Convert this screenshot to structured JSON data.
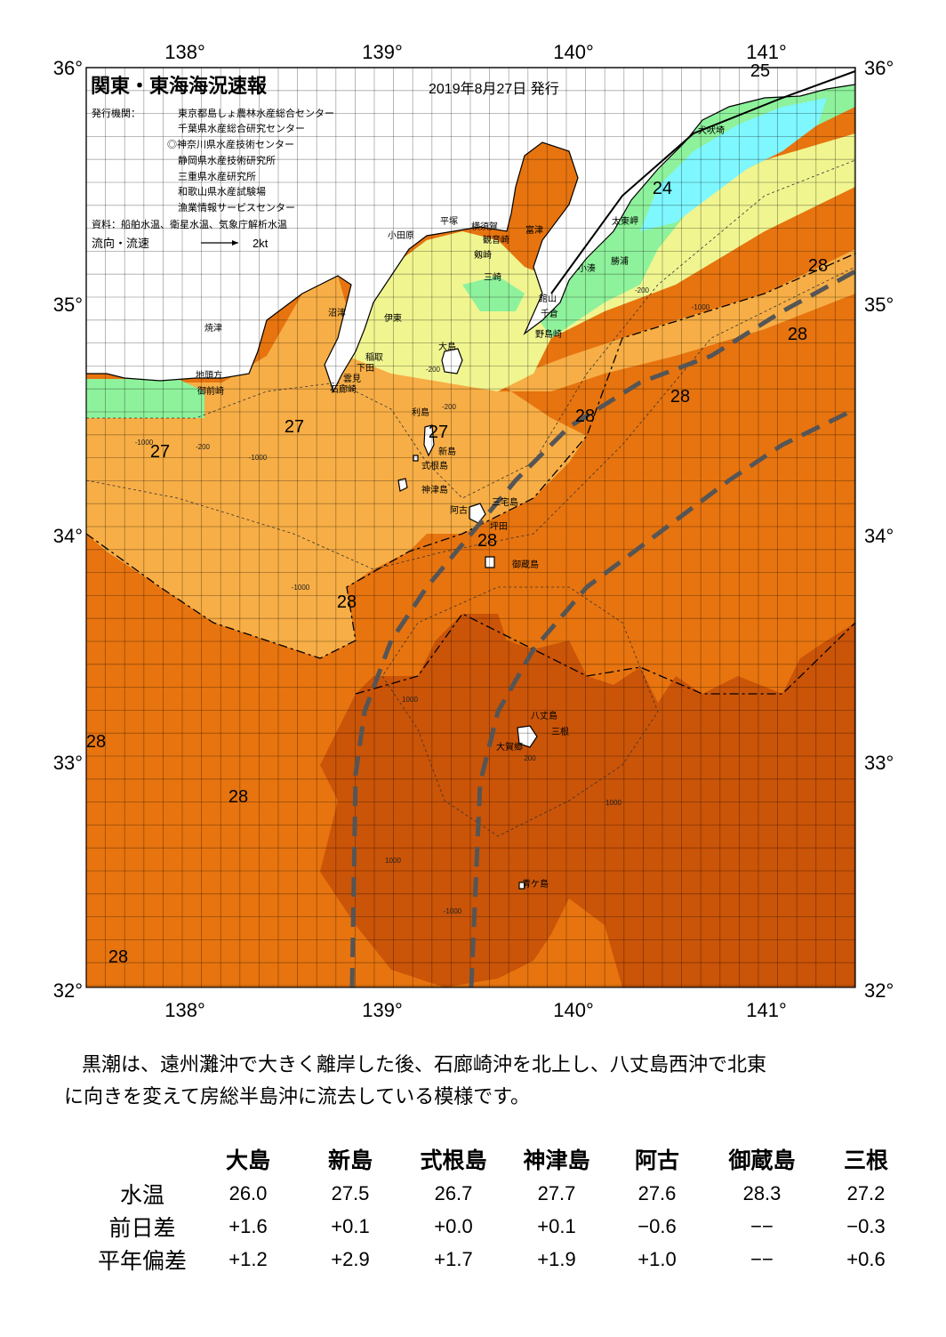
{
  "header": {
    "title": "関東・東海海況速報",
    "date": "2019年8月27日 発行",
    "agency_label": "発行機関：",
    "agencies": [
      "東京都島しょ農林水産総合センター",
      "千葉県水産総合研究センター",
      "◎神奈川県水産技術センター",
      "静岡県水産技術研究所",
      "三重県水産研究所",
      "和歌山県水産試験場",
      "漁業情報サービスセンター"
    ],
    "source": "資料：船舶水温、衛星水温、気象庁解析水温",
    "legend_label": "流向・流速",
    "legend_scale": "2kt"
  },
  "axes": {
    "lon_labels": [
      "138°",
      "139°",
      "140°",
      "141°"
    ],
    "lat_labels": [
      "36°",
      "35°",
      "34°",
      "33°",
      "32°"
    ]
  },
  "colors": {
    "t24": "#7ff7ff",
    "t25": "#8ef29c",
    "t26": "#f0f590",
    "t27": "#f7ae46",
    "t28": "#e7740f",
    "t29": "#ca5408",
    "land": "#ffffff",
    "kuroshio": "#555555"
  },
  "temp_labels": [
    {
      "v": "24"
    },
    {
      "v": "25"
    },
    {
      "v": "27"
    },
    {
      "v": "27"
    },
    {
      "v": "27"
    },
    {
      "v": "28"
    },
    {
      "v": "28"
    },
    {
      "v": "28"
    },
    {
      "v": "28"
    },
    {
      "v": "28"
    },
    {
      "v": "28"
    },
    {
      "v": "28"
    },
    {
      "v": "28"
    },
    {
      "v": "28"
    }
  ],
  "place_names": [
    "犬吠埼",
    "太東岬",
    "勝浦",
    "小湊",
    "富津",
    "館山",
    "千倉",
    "野島崎",
    "横須賀",
    "観音崎",
    "剱崎",
    "平塚",
    "小田原",
    "三崎",
    "沼津",
    "伊東",
    "稲取",
    "下田",
    "雲見",
    "石廊崎",
    "焼津",
    "地頭方",
    "御前崎",
    "大島",
    "利島",
    "新島",
    "式根島",
    "神津島",
    "三宅島",
    "阿古",
    "坪田",
    "御蔵島",
    "八丈島",
    "三根",
    "大賀郷",
    "青ケ島"
  ],
  "depth_labels": [
    "-200",
    "-200",
    "-200",
    "-1000",
    "-1000",
    "-200",
    "-1000",
    "-1000",
    "1000",
    "1000",
    "1000",
    "200",
    "-1000"
  ],
  "summary": {
    "line1": "黒潮は、遠州灘沖で大きく離岸した後、石廊崎沖を北上し、八丈島西沖で北東",
    "line2": "に向きを変えて房総半島沖に流去している模様です。"
  },
  "stations": {
    "headers": [
      "",
      "大島",
      "新島",
      "式根島",
      "神津島",
      "阿古",
      "御蔵島",
      "三根"
    ],
    "rows": [
      {
        "label": "水温",
        "values": [
          "26.0",
          "27.5",
          "26.7",
          "27.7",
          "27.6",
          "28.3",
          "27.2"
        ]
      },
      {
        "label": "前日差",
        "values": [
          "+1.6",
          "+0.1",
          "+0.0",
          "+0.1",
          "−0.6",
          "−−",
          "−0.3"
        ]
      },
      {
        "label": "平年偏差",
        "values": [
          "+1.2",
          "+2.9",
          "+1.7",
          "+1.9",
          "+1.0",
          "−−",
          "+0.6"
        ]
      }
    ]
  }
}
